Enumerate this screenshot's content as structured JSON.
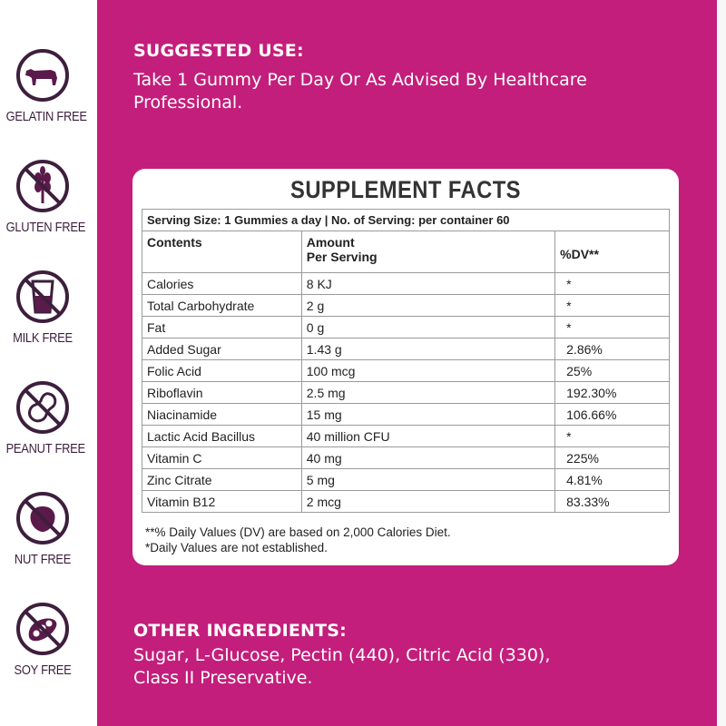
{
  "badges": [
    {
      "label": "GELATIN FREE",
      "icon": "cow-crossed-icon"
    },
    {
      "label": "GLUTEN FREE",
      "icon": "wheat-crossed-icon"
    },
    {
      "label": "MILK FREE",
      "icon": "glass-crossed-icon"
    },
    {
      "label": "PEANUT FREE",
      "icon": "peanut-crossed-icon"
    },
    {
      "label": "NUT FREE",
      "icon": "nut-crossed-icon"
    },
    {
      "label": "SOY FREE",
      "icon": "soybean-crossed-icon"
    }
  ],
  "suggested_use": {
    "heading": "SUGGESTED USE:",
    "line1": "Take 1 Gummy Per Day Or As Advised By Healthcare",
    "line2": "Professional."
  },
  "supplement_facts": {
    "title": "SUPPLEMENT FACTS",
    "serving": "Serving Size: 1 Gummies a day | No. of Serving: per container 60",
    "headers": {
      "contents": "Contents",
      "amount_line1": "Amount",
      "amount_line2": "Per Serving",
      "dv": "%DV**"
    },
    "rows": [
      {
        "name": "Calories",
        "amount": "8 KJ",
        "dv": "*"
      },
      {
        "name": "Total Carbohydrate",
        "amount": "2 g",
        "dv": "*"
      },
      {
        "name": "Fat",
        "amount": "0 g",
        "dv": "*"
      },
      {
        "name": "Added Sugar",
        "amount": "1.43 g",
        "dv": "2.86%"
      },
      {
        "name": "Folic Acid",
        "amount": "100 mcg",
        "dv": "25%"
      },
      {
        "name": "Riboflavin",
        "amount": "2.5 mg",
        "dv": "192.30%"
      },
      {
        "name": "Niacinamide",
        "amount": "15 mg",
        "dv": "106.66%"
      },
      {
        "name": "Lactic Acid Bacillus",
        "amount": "40 million CFU",
        "dv": "*"
      },
      {
        "name": "Vitamin C",
        "amount": "40 mg",
        "dv": "225%"
      },
      {
        "name": "Zinc Citrate",
        "amount": "5 mg",
        "dv": "4.81%"
      },
      {
        "name": "Vitamin B12",
        "amount": "2 mcg",
        "dv": "83.33%"
      }
    ],
    "footnote1": "**% Daily Values (DV) are based on 2,000 Calories Diet.",
    "footnote2": "*Daily Values are not established."
  },
  "other_ingredients": {
    "heading": "OTHER INGREDIENTS:",
    "line1": "Sugar, L-Glucose, Pectin (440), Citric Acid (330),",
    "line2": "Class II Preservative."
  },
  "colors": {
    "brand_magenta": "#c31e7b",
    "icon_purple": "#5a1a4a",
    "icon_ring": "#3d1f3d"
  }
}
